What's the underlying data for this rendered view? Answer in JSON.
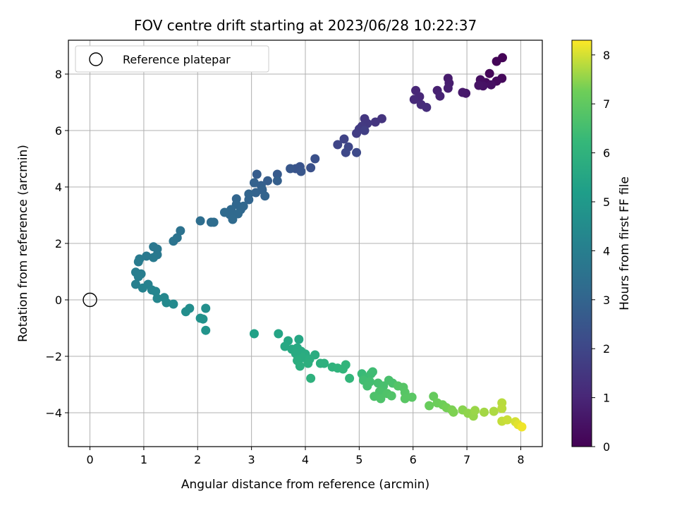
{
  "chart_data": {
    "type": "scatter",
    "title": "FOV centre drift starting at 2023/06/28 10:22:37",
    "xlabel": "Angular distance from reference (arcmin)",
    "ylabel": "Rotation from reference (arcmin)",
    "xlim": [
      -0.4,
      8.4
    ],
    "ylim": [
      -5.2,
      9.2
    ],
    "xticks": [
      0,
      1,
      2,
      3,
      4,
      5,
      6,
      7,
      8
    ],
    "yticks": [
      -4,
      -2,
      0,
      2,
      4,
      6,
      8
    ],
    "grid": true,
    "legend": {
      "placement": "top-left",
      "entries": [
        "Reference platepar"
      ]
    },
    "reference_point": {
      "x": 0,
      "y": 0,
      "label": "Reference platepar"
    },
    "colorbar": {
      "label": "Hours from first FF file",
      "range": [
        0,
        8.3
      ],
      "ticks": [
        0,
        1,
        2,
        3,
        4,
        5,
        6,
        7,
        8
      ],
      "colormap": "viridis"
    },
    "points": [
      {
        "x": 7.66,
        "y": 8.58,
        "t": 0.05
      },
      {
        "x": 7.55,
        "y": 8.45,
        "t": 0.1
      },
      {
        "x": 7.42,
        "y": 8.02,
        "t": 0.15
      },
      {
        "x": 7.65,
        "y": 7.85,
        "t": 0.2
      },
      {
        "x": 7.55,
        "y": 7.75,
        "t": 0.25
      },
      {
        "x": 7.35,
        "y": 7.7,
        "t": 0.3
      },
      {
        "x": 7.25,
        "y": 7.8,
        "t": 0.35
      },
      {
        "x": 7.45,
        "y": 7.62,
        "t": 0.4
      },
      {
        "x": 7.3,
        "y": 7.58,
        "t": 0.45
      },
      {
        "x": 7.22,
        "y": 7.6,
        "t": 0.5
      },
      {
        "x": 6.98,
        "y": 7.32,
        "t": 0.6
      },
      {
        "x": 6.92,
        "y": 7.35,
        "t": 0.65
      },
      {
        "x": 6.65,
        "y": 7.85,
        "t": 0.7
      },
      {
        "x": 6.67,
        "y": 7.68,
        "t": 0.75
      },
      {
        "x": 6.65,
        "y": 7.5,
        "t": 0.8
      },
      {
        "x": 6.45,
        "y": 7.42,
        "t": 0.85
      },
      {
        "x": 6.5,
        "y": 7.22,
        "t": 0.9
      },
      {
        "x": 6.05,
        "y": 7.42,
        "t": 1.0
      },
      {
        "x": 6.12,
        "y": 7.2,
        "t": 1.05
      },
      {
        "x": 6.02,
        "y": 7.1,
        "t": 1.1
      },
      {
        "x": 6.15,
        "y": 6.92,
        "t": 1.15
      },
      {
        "x": 6.25,
        "y": 6.82,
        "t": 1.2
      },
      {
        "x": 5.42,
        "y": 6.42,
        "t": 1.4
      },
      {
        "x": 5.3,
        "y": 6.3,
        "t": 1.45
      },
      {
        "x": 5.1,
        "y": 6.42,
        "t": 1.5
      },
      {
        "x": 5.15,
        "y": 6.25,
        "t": 1.55
      },
      {
        "x": 5.05,
        "y": 6.15,
        "t": 1.6
      },
      {
        "x": 5.0,
        "y": 6.05,
        "t": 1.65
      },
      {
        "x": 4.95,
        "y": 5.9,
        "t": 1.7
      },
      {
        "x": 5.1,
        "y": 6.0,
        "t": 1.75
      },
      {
        "x": 4.72,
        "y": 5.7,
        "t": 1.9
      },
      {
        "x": 4.6,
        "y": 5.5,
        "t": 1.95
      },
      {
        "x": 4.8,
        "y": 5.42,
        "t": 2.0
      },
      {
        "x": 4.75,
        "y": 5.22,
        "t": 2.05
      },
      {
        "x": 4.95,
        "y": 5.22,
        "t": 2.1
      },
      {
        "x": 4.18,
        "y": 5.0,
        "t": 2.3
      },
      {
        "x": 4.1,
        "y": 4.68,
        "t": 2.35
      },
      {
        "x": 3.9,
        "y": 4.72,
        "t": 2.4
      },
      {
        "x": 3.82,
        "y": 4.65,
        "t": 2.45
      },
      {
        "x": 3.92,
        "y": 4.55,
        "t": 2.5
      },
      {
        "x": 3.72,
        "y": 4.65,
        "t": 2.55
      },
      {
        "x": 3.48,
        "y": 4.45,
        "t": 2.65
      },
      {
        "x": 3.1,
        "y": 4.45,
        "t": 2.7
      },
      {
        "x": 3.3,
        "y": 4.22,
        "t": 2.75
      },
      {
        "x": 3.48,
        "y": 4.22,
        "t": 2.8
      },
      {
        "x": 3.18,
        "y": 4.05,
        "t": 2.85
      },
      {
        "x": 3.05,
        "y": 4.15,
        "t": 2.9
      },
      {
        "x": 3.2,
        "y": 3.9,
        "t": 2.92
      },
      {
        "x": 3.08,
        "y": 3.8,
        "t": 2.95
      },
      {
        "x": 3.25,
        "y": 3.68,
        "t": 2.97
      },
      {
        "x": 2.95,
        "y": 3.75,
        "t": 3.0
      },
      {
        "x": 2.95,
        "y": 3.55,
        "t": 3.02
      },
      {
        "x": 2.72,
        "y": 3.58,
        "t": 3.05
      },
      {
        "x": 2.72,
        "y": 3.38,
        "t": 3.08
      },
      {
        "x": 2.85,
        "y": 3.32,
        "t": 3.1
      },
      {
        "x": 2.8,
        "y": 3.2,
        "t": 3.12
      },
      {
        "x": 2.62,
        "y": 3.2,
        "t": 3.15
      },
      {
        "x": 2.75,
        "y": 3.05,
        "t": 3.18
      },
      {
        "x": 2.6,
        "y": 3.02,
        "t": 3.2
      },
      {
        "x": 2.5,
        "y": 3.1,
        "t": 3.22
      },
      {
        "x": 2.65,
        "y": 2.85,
        "t": 3.25
      },
      {
        "x": 2.3,
        "y": 2.75,
        "t": 3.3
      },
      {
        "x": 2.25,
        "y": 2.75,
        "t": 3.32
      },
      {
        "x": 2.05,
        "y": 2.8,
        "t": 3.35
      },
      {
        "x": 1.68,
        "y": 2.45,
        "t": 3.5
      },
      {
        "x": 1.62,
        "y": 2.2,
        "t": 3.55
      },
      {
        "x": 1.55,
        "y": 2.08,
        "t": 3.6
      },
      {
        "x": 1.25,
        "y": 1.8,
        "t": 3.7
      },
      {
        "x": 1.18,
        "y": 1.88,
        "t": 3.72
      },
      {
        "x": 1.25,
        "y": 1.6,
        "t": 3.75
      },
      {
        "x": 1.05,
        "y": 1.55,
        "t": 3.8
      },
      {
        "x": 1.18,
        "y": 1.5,
        "t": 3.82
      },
      {
        "x": 0.92,
        "y": 1.45,
        "t": 3.85
      },
      {
        "x": 0.9,
        "y": 1.35,
        "t": 3.87
      },
      {
        "x": 0.85,
        "y": 0.98,
        "t": 3.95
      },
      {
        "x": 0.95,
        "y": 0.92,
        "t": 3.97
      },
      {
        "x": 0.9,
        "y": 0.82,
        "t": 4.0
      },
      {
        "x": 0.85,
        "y": 0.55,
        "t": 4.05
      },
      {
        "x": 1.08,
        "y": 0.55,
        "t": 4.1
      },
      {
        "x": 0.98,
        "y": 0.42,
        "t": 4.15
      },
      {
        "x": 1.15,
        "y": 0.35,
        "t": 4.2
      },
      {
        "x": 1.22,
        "y": 0.3,
        "t": 4.25
      },
      {
        "x": 1.25,
        "y": 0.05,
        "t": 4.3
      },
      {
        "x": 1.38,
        "y": 0.08,
        "t": 4.35
      },
      {
        "x": 1.42,
        "y": -0.1,
        "t": 4.4
      },
      {
        "x": 1.55,
        "y": -0.15,
        "t": 4.45
      },
      {
        "x": 1.85,
        "y": -0.3,
        "t": 4.55
      },
      {
        "x": 1.78,
        "y": -0.42,
        "t": 4.6
      },
      {
        "x": 2.15,
        "y": -0.3,
        "t": 4.65
      },
      {
        "x": 2.05,
        "y": -0.65,
        "t": 4.7
      },
      {
        "x": 2.1,
        "y": -0.68,
        "t": 4.75
      },
      {
        "x": 2.15,
        "y": -1.08,
        "t": 4.8
      },
      {
        "x": 3.05,
        "y": -1.2,
        "t": 5.3
      },
      {
        "x": 3.5,
        "y": -1.2,
        "t": 5.45
      },
      {
        "x": 3.88,
        "y": -1.4,
        "t": 5.5
      },
      {
        "x": 3.68,
        "y": -1.45,
        "t": 5.55
      },
      {
        "x": 3.62,
        "y": -1.65,
        "t": 5.6
      },
      {
        "x": 3.75,
        "y": -1.75,
        "t": 5.62
      },
      {
        "x": 3.85,
        "y": -1.7,
        "t": 5.65
      },
      {
        "x": 3.92,
        "y": -1.82,
        "t": 5.67
      },
      {
        "x": 3.82,
        "y": -1.9,
        "t": 5.7
      },
      {
        "x": 4.0,
        "y": -1.92,
        "t": 5.72
      },
      {
        "x": 3.95,
        "y": -2.05,
        "t": 5.75
      },
      {
        "x": 4.18,
        "y": -1.95,
        "t": 5.77
      },
      {
        "x": 4.08,
        "y": -2.1,
        "t": 5.8
      },
      {
        "x": 3.85,
        "y": -2.15,
        "t": 5.82
      },
      {
        "x": 3.9,
        "y": -2.35,
        "t": 5.85
      },
      {
        "x": 4.05,
        "y": -2.25,
        "t": 5.87
      },
      {
        "x": 4.28,
        "y": -2.25,
        "t": 5.9
      },
      {
        "x": 4.35,
        "y": -2.25,
        "t": 5.92
      },
      {
        "x": 4.1,
        "y": -2.78,
        "t": 5.95
      },
      {
        "x": 4.5,
        "y": -2.38,
        "t": 6.0
      },
      {
        "x": 4.6,
        "y": -2.42,
        "t": 6.05
      },
      {
        "x": 4.7,
        "y": -2.45,
        "t": 6.08
      },
      {
        "x": 4.75,
        "y": -2.3,
        "t": 6.1
      },
      {
        "x": 4.82,
        "y": -2.78,
        "t": 6.15
      },
      {
        "x": 5.05,
        "y": -2.62,
        "t": 6.3
      },
      {
        "x": 5.12,
        "y": -2.75,
        "t": 6.35
      },
      {
        "x": 5.22,
        "y": -2.62,
        "t": 6.4
      },
      {
        "x": 5.25,
        "y": -2.55,
        "t": 6.42
      },
      {
        "x": 5.08,
        "y": -2.85,
        "t": 6.45
      },
      {
        "x": 5.2,
        "y": -2.9,
        "t": 6.48
      },
      {
        "x": 5.15,
        "y": -3.05,
        "t": 6.5
      },
      {
        "x": 5.35,
        "y": -2.95,
        "t": 6.55
      },
      {
        "x": 5.45,
        "y": -3.05,
        "t": 6.58
      },
      {
        "x": 5.55,
        "y": -2.85,
        "t": 6.6
      },
      {
        "x": 5.62,
        "y": -2.95,
        "t": 6.62
      },
      {
        "x": 5.38,
        "y": -3.25,
        "t": 6.65
      },
      {
        "x": 5.28,
        "y": -3.42,
        "t": 6.68
      },
      {
        "x": 5.4,
        "y": -3.5,
        "t": 6.7
      },
      {
        "x": 5.52,
        "y": -3.32,
        "t": 6.72
      },
      {
        "x": 5.6,
        "y": -3.4,
        "t": 6.75
      },
      {
        "x": 5.72,
        "y": -3.05,
        "t": 6.8
      },
      {
        "x": 5.82,
        "y": -3.1,
        "t": 6.82
      },
      {
        "x": 5.85,
        "y": -3.28,
        "t": 6.85
      },
      {
        "x": 5.85,
        "y": -3.5,
        "t": 6.88
      },
      {
        "x": 5.98,
        "y": -3.45,
        "t": 6.9
      },
      {
        "x": 6.38,
        "y": -3.42,
        "t": 7.1
      },
      {
        "x": 6.3,
        "y": -3.75,
        "t": 7.15
      },
      {
        "x": 6.45,
        "y": -3.65,
        "t": 7.2
      },
      {
        "x": 6.55,
        "y": -3.72,
        "t": 7.25
      },
      {
        "x": 6.62,
        "y": -3.82,
        "t": 7.3
      },
      {
        "x": 6.72,
        "y": -3.9,
        "t": 7.35
      },
      {
        "x": 6.75,
        "y": -3.98,
        "t": 7.38
      },
      {
        "x": 6.92,
        "y": -3.9,
        "t": 7.45
      },
      {
        "x": 7.02,
        "y": -4.02,
        "t": 7.5
      },
      {
        "x": 7.12,
        "y": -4.12,
        "t": 7.55
      },
      {
        "x": 7.15,
        "y": -3.92,
        "t": 7.58
      },
      {
        "x": 7.32,
        "y": -3.98,
        "t": 7.65
      },
      {
        "x": 7.5,
        "y": -3.95,
        "t": 7.72
      },
      {
        "x": 7.65,
        "y": -3.65,
        "t": 7.8
      },
      {
        "x": 7.65,
        "y": -3.85,
        "t": 7.82
      },
      {
        "x": 7.65,
        "y": -4.3,
        "t": 7.88
      },
      {
        "x": 7.75,
        "y": -4.25,
        "t": 7.92
      },
      {
        "x": 7.9,
        "y": -4.32,
        "t": 8.0
      },
      {
        "x": 7.95,
        "y": -4.42,
        "t": 8.1
      },
      {
        "x": 8.02,
        "y": -4.5,
        "t": 8.2
      }
    ]
  }
}
